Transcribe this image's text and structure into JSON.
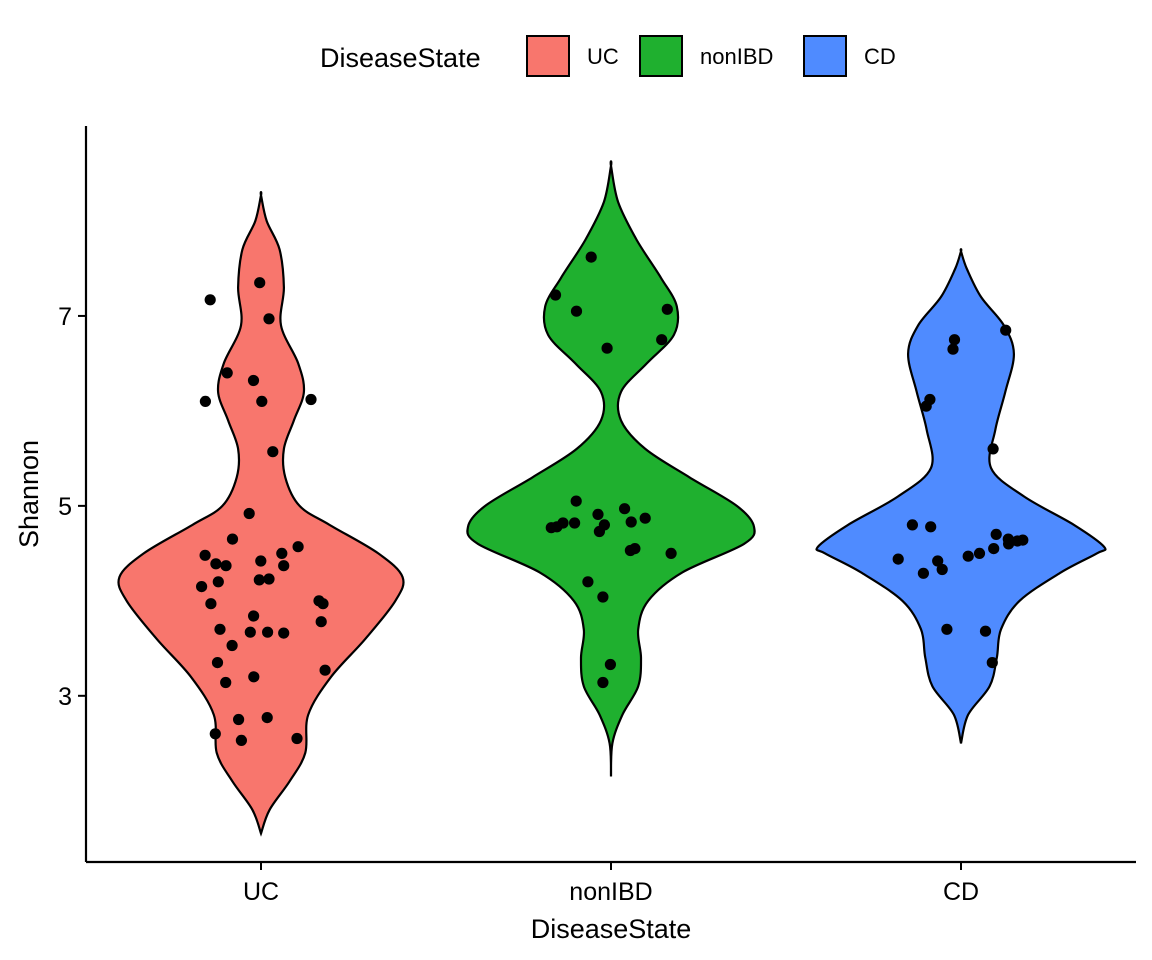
{
  "chart_data": {
    "type": "violin",
    "title": "",
    "xlabel": "DiseaseState",
    "ylabel": "Shannon",
    "ylim": [
      1.25,
      9.0
    ],
    "yticks": [
      3,
      5,
      7
    ],
    "categories": [
      "UC",
      "nonIBD",
      "CD"
    ],
    "grid": false,
    "legend": {
      "title": "DiseaseState",
      "position": "top",
      "entries": [
        "UC",
        "nonIBD",
        "CD"
      ]
    },
    "colors": {
      "UC": "#F8766D",
      "nonIBD": "#1FB02F",
      "CD": "#4F8BFF"
    },
    "violins": [
      {
        "name": "UC",
        "range": [
          1.55,
          8.27
        ],
        "profile": [
          [
            1.55,
            0.0
          ],
          [
            1.8,
            0.06
          ],
          [
            2.1,
            0.2
          ],
          [
            2.4,
            0.31
          ],
          [
            2.8,
            0.33
          ],
          [
            3.2,
            0.49
          ],
          [
            3.6,
            0.73
          ],
          [
            4.0,
            0.94
          ],
          [
            4.25,
            0.99
          ],
          [
            4.5,
            0.82
          ],
          [
            4.8,
            0.48
          ],
          [
            5.0,
            0.27
          ],
          [
            5.3,
            0.17
          ],
          [
            5.6,
            0.16
          ],
          [
            5.9,
            0.23
          ],
          [
            6.2,
            0.3
          ],
          [
            6.5,
            0.26
          ],
          [
            6.9,
            0.14
          ],
          [
            7.3,
            0.16
          ],
          [
            7.7,
            0.13
          ],
          [
            8.0,
            0.04
          ],
          [
            8.27,
            0.0
          ]
        ]
      },
      {
        "name": "nonIBD",
        "range": [
          2.15,
          8.58
        ],
        "profile": [
          [
            2.15,
            0.0
          ],
          [
            2.5,
            0.01
          ],
          [
            2.8,
            0.08
          ],
          [
            3.1,
            0.19
          ],
          [
            3.4,
            0.21
          ],
          [
            3.7,
            0.19
          ],
          [
            4.0,
            0.26
          ],
          [
            4.3,
            0.5
          ],
          [
            4.6,
            0.93
          ],
          [
            4.78,
            1.0
          ],
          [
            5.0,
            0.88
          ],
          [
            5.3,
            0.55
          ],
          [
            5.6,
            0.24
          ],
          [
            5.9,
            0.07
          ],
          [
            6.2,
            0.07
          ],
          [
            6.5,
            0.25
          ],
          [
            6.8,
            0.44
          ],
          [
            7.1,
            0.46
          ],
          [
            7.4,
            0.35
          ],
          [
            7.8,
            0.18
          ],
          [
            8.2,
            0.05
          ],
          [
            8.58,
            0.0
          ]
        ]
      },
      {
        "name": "CD",
        "range": [
          2.5,
          7.68
        ],
        "profile": [
          [
            2.5,
            0.0
          ],
          [
            2.8,
            0.05
          ],
          [
            3.1,
            0.2
          ],
          [
            3.4,
            0.25
          ],
          [
            3.7,
            0.28
          ],
          [
            4.0,
            0.41
          ],
          [
            4.3,
            0.7
          ],
          [
            4.5,
            0.95
          ],
          [
            4.57,
            1.0
          ],
          [
            4.8,
            0.79
          ],
          [
            5.1,
            0.44
          ],
          [
            5.4,
            0.21
          ],
          [
            5.8,
            0.24
          ],
          [
            6.2,
            0.31
          ],
          [
            6.6,
            0.37
          ],
          [
            6.9,
            0.3
          ],
          [
            7.2,
            0.14
          ],
          [
            7.5,
            0.04
          ],
          [
            7.68,
            0.0
          ]
        ]
      }
    ],
    "points": [
      {
        "group": "UC",
        "values": [
          7.35,
          6.97,
          7.17,
          6.4,
          6.32,
          6.1,
          6.1,
          6.12,
          5.57,
          4.92,
          4.65,
          4.57,
          4.5,
          4.48,
          4.42,
          4.37,
          4.37,
          4.39,
          4.23,
          4.22,
          4.2,
          4.15,
          4.0,
          3.97,
          3.97,
          3.84,
          3.78,
          3.7,
          3.67,
          3.67,
          3.66,
          3.53,
          3.35,
          3.27,
          3.2,
          3.14,
          2.77,
          2.75,
          2.6,
          2.55,
          2.53
        ]
      },
      {
        "group": "nonIBD",
        "values": [
          7.62,
          7.22,
          7.07,
          7.05,
          6.75,
          6.66,
          5.05,
          4.97,
          4.91,
          4.87,
          4.83,
          4.82,
          4.82,
          4.8,
          4.78,
          4.77,
          4.73,
          4.55,
          4.53,
          4.5,
          4.2,
          4.04,
          3.33,
          3.14
        ]
      },
      {
        "group": "CD",
        "values": [
          6.85,
          6.75,
          6.65,
          6.12,
          6.05,
          5.6,
          4.8,
          4.78,
          4.7,
          4.65,
          4.64,
          4.63,
          4.6,
          4.55,
          4.5,
          4.47,
          4.44,
          4.42,
          4.33,
          4.29,
          3.7,
          3.68,
          3.35
        ]
      }
    ]
  }
}
